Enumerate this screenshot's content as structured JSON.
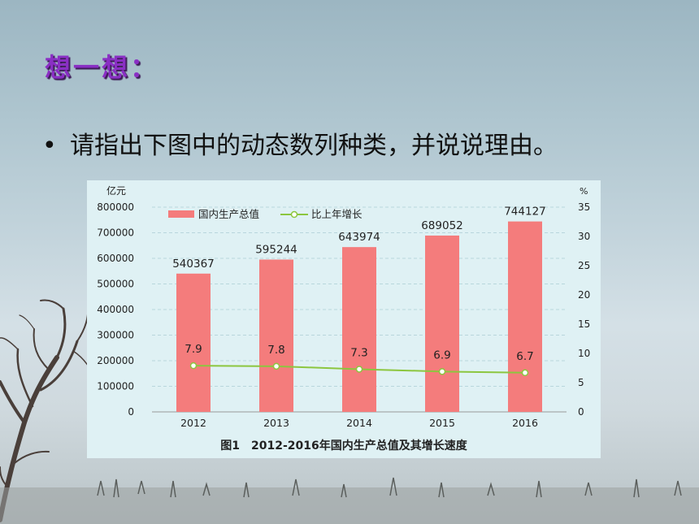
{
  "slide": {
    "heading": "想一想：",
    "bullet_text": "请指出下图中的动态数列种类，并说说理由。"
  },
  "chart_data": {
    "type": "bar",
    "title": "图1　2012-2016年国内生产总值及其增长速度",
    "categories": [
      "2012",
      "2013",
      "2014",
      "2015",
      "2016"
    ],
    "series": [
      {
        "name": "国内生产总值",
        "type": "bar",
        "axis": "left",
        "values": [
          540367,
          595244,
          643974,
          689052,
          744127
        ],
        "labels": [
          "540367",
          "595244",
          "643974",
          "689052",
          "744127"
        ],
        "color": "#f47c7c"
      },
      {
        "name": "比上年增长",
        "type": "line",
        "axis": "right",
        "values": [
          7.9,
          7.8,
          7.3,
          6.9,
          6.7
        ],
        "labels": [
          "7.9",
          "7.8",
          "7.3",
          "6.9",
          "6.7"
        ],
        "color": "#8cc63f"
      }
    ],
    "y_left": {
      "unit": "亿元",
      "range": [
        0,
        800000
      ],
      "ticks": [
        "0",
        "100000",
        "200000",
        "300000",
        "400000",
        "500000",
        "600000",
        "700000",
        "800000"
      ]
    },
    "y_right": {
      "unit": "%",
      "range": [
        0,
        35
      ],
      "ticks": [
        "0",
        "5",
        "10",
        "15",
        "20",
        "25",
        "30",
        "35"
      ]
    },
    "legend_position": "top-left",
    "grid": "horizontal-dashed"
  }
}
